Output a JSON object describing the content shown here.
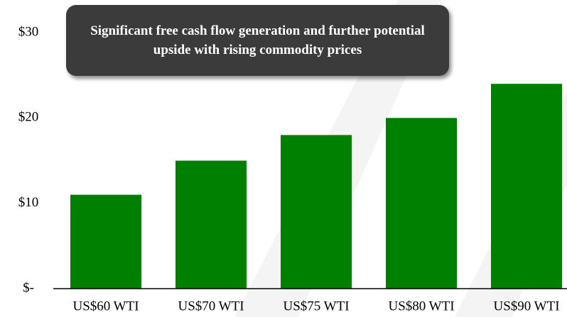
{
  "chart_data": {
    "type": "bar",
    "annotation": "Significant free cash flow generation and further potential upside with rising commodity prices",
    "categories": [
      "US$60 WTI",
      "US$70 WTI",
      "US$75 WTI",
      "US$80 WTI",
      "US$90 WTI"
    ],
    "values": [
      11,
      15,
      18,
      20,
      24
    ],
    "color": "#008000",
    "ylim": [
      0,
      30
    ],
    "yticks": [
      {
        "value": 0,
        "label": "$-"
      },
      {
        "value": 10,
        "label": "$10"
      },
      {
        "value": 20,
        "label": "$20"
      },
      {
        "value": 30,
        "label": "$30"
      }
    ],
    "grid": false
  }
}
